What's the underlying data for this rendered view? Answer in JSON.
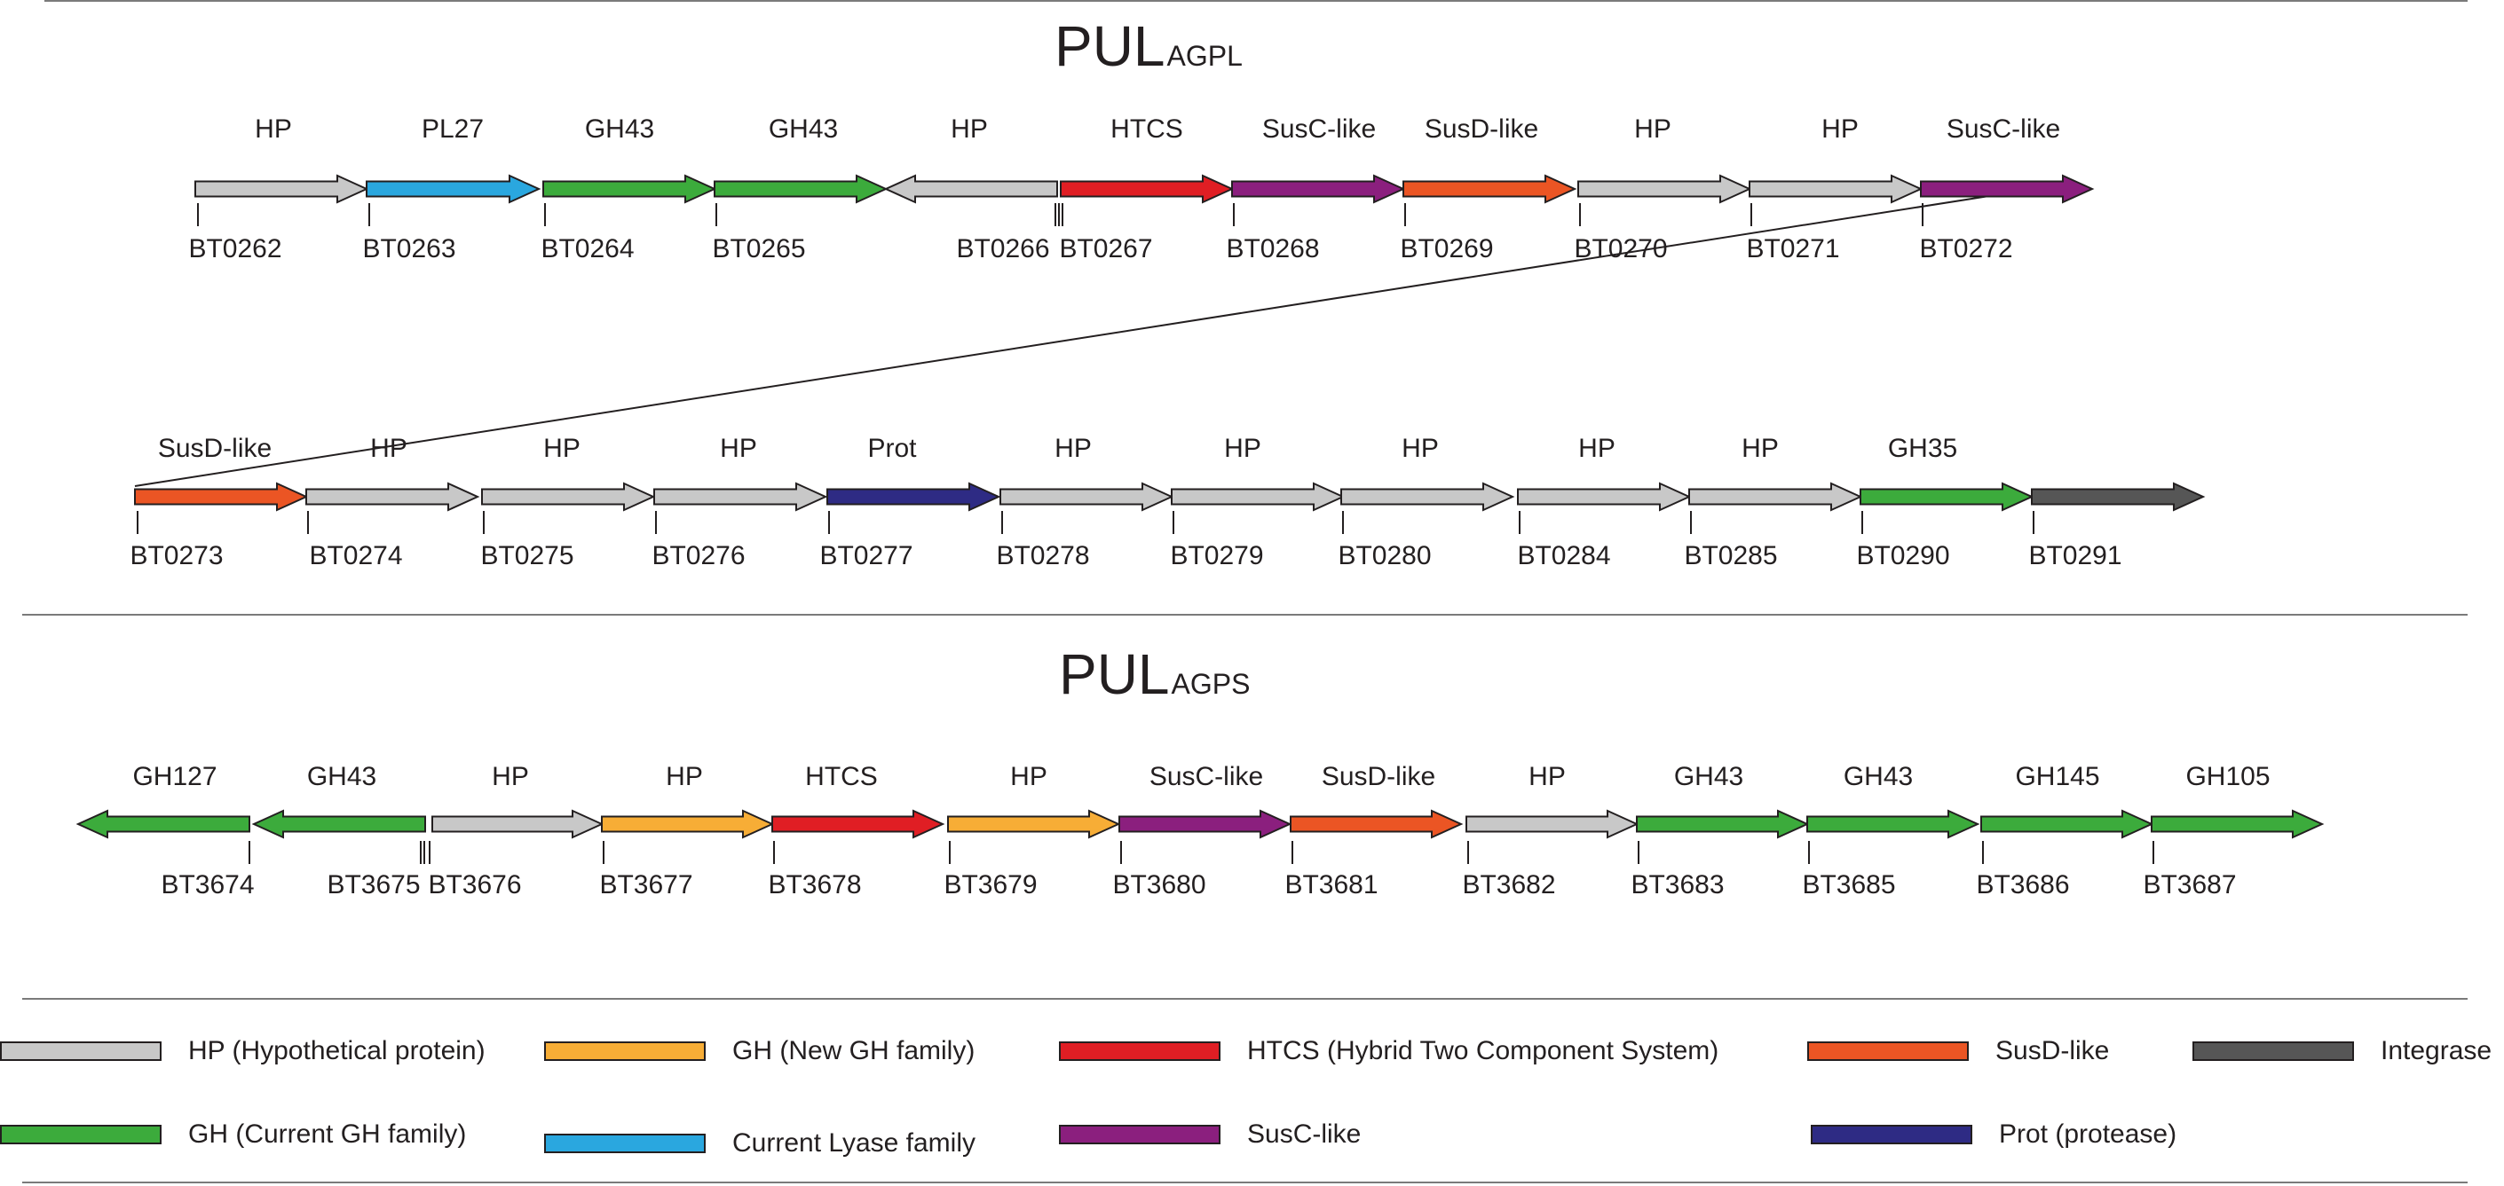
{
  "colors": {
    "hp": "#c8c8c8",
    "lyase": "#2aa7df",
    "gh_current": "#3cab3c",
    "htcs": "#e01e24",
    "susc": "#8b1f7e",
    "susd": "#eb5524",
    "prot": "#2e2b84",
    "integrase": "#565656",
    "gh_new": "#f7ad36",
    "stroke": "#231f20"
  },
  "pul_agpl": {
    "title_main": "PUL",
    "title_sub": "AGPL",
    "row1": [
      {
        "label": "HP",
        "locus": "BT0262",
        "type": "hp",
        "dir": "right"
      },
      {
        "label": "PL27",
        "locus": "BT0263",
        "type": "lyase",
        "dir": "right"
      },
      {
        "label": "GH43",
        "locus": "BT0264",
        "type": "gh_current",
        "dir": "right"
      },
      {
        "label": "GH43",
        "locus": "BT0265",
        "type": "gh_current",
        "dir": "right"
      },
      {
        "label": "HP",
        "locus": "BT0266",
        "type": "hp",
        "dir": "left"
      },
      {
        "label": "HTCS",
        "locus": "BT0267",
        "type": "htcs",
        "dir": "right"
      },
      {
        "label": "SusC-like",
        "locus": "BT0268",
        "type": "susc",
        "dir": "right"
      },
      {
        "label": "SusD-like",
        "locus": "BT0269",
        "type": "susd",
        "dir": "right"
      },
      {
        "label": "HP",
        "locus": "BT0270",
        "type": "hp",
        "dir": "right"
      },
      {
        "label": "HP",
        "locus": "BT0271",
        "type": "hp",
        "dir": "right"
      },
      {
        "label": "SusC-like",
        "locus": "BT0272",
        "type": "susc",
        "dir": "right"
      }
    ],
    "row2": [
      {
        "label": "SusD-like",
        "locus": "BT0273",
        "type": "susd",
        "dir": "right"
      },
      {
        "label": "HP",
        "locus": "BT0274",
        "type": "hp",
        "dir": "right"
      },
      {
        "label": "HP",
        "locus": "BT0275",
        "type": "hp",
        "dir": "right"
      },
      {
        "label": "HP",
        "locus": "BT0276",
        "type": "hp",
        "dir": "right"
      },
      {
        "label": "Prot",
        "locus": "BT0277",
        "type": "prot",
        "dir": "right"
      },
      {
        "label": "HP",
        "locus": "BT0278",
        "type": "hp",
        "dir": "right"
      },
      {
        "label": "HP",
        "locus": "BT0279",
        "type": "hp",
        "dir": "right"
      },
      {
        "label": "HP",
        "locus": "BT0280",
        "type": "hp",
        "dir": "right"
      },
      {
        "label": "HP",
        "locus": "BT0284",
        "type": "hp",
        "dir": "right"
      },
      {
        "label": "HP",
        "locus": "BT0285",
        "type": "hp",
        "dir": "right"
      },
      {
        "label": "GH35",
        "locus": "BT0290",
        "type": "gh_current",
        "dir": "right"
      },
      {
        "label": "",
        "locus": "BT0291",
        "type": "integrase",
        "dir": "right"
      }
    ]
  },
  "pul_agps": {
    "title_main": "PUL",
    "title_sub": "AGPS",
    "row": [
      {
        "label": "GH127",
        "locus": "BT3674",
        "type": "gh_current",
        "dir": "left"
      },
      {
        "label": "GH43",
        "locus": "BT3675",
        "type": "gh_current",
        "dir": "left"
      },
      {
        "label": "HP",
        "locus": "BT3676",
        "type": "hp",
        "dir": "right"
      },
      {
        "label": "HP",
        "locus": "BT3677",
        "type": "gh_new",
        "dir": "right"
      },
      {
        "label": "HTCS",
        "locus": "BT3678",
        "type": "htcs",
        "dir": "right"
      },
      {
        "label": "HP",
        "locus": "BT3679",
        "type": "gh_new",
        "dir": "right"
      },
      {
        "label": "SusC-like",
        "locus": "BT3680",
        "type": "susc",
        "dir": "right"
      },
      {
        "label": "SusD-like",
        "locus": "BT3681",
        "type": "susd",
        "dir": "right"
      },
      {
        "label": "HP",
        "locus": "BT3682",
        "type": "hp",
        "dir": "right"
      },
      {
        "label": "GH43",
        "locus": "BT3683",
        "type": "gh_current",
        "dir": "right"
      },
      {
        "label": "GH43",
        "locus": "BT3685",
        "type": "gh_current",
        "dir": "right"
      },
      {
        "label": "GH145",
        "locus": "BT3686",
        "type": "gh_current",
        "dir": "right"
      },
      {
        "label": "GH105",
        "locus": "BT3687",
        "type": "gh_current",
        "dir": "right"
      }
    ]
  },
  "legend": [
    {
      "key": "hp",
      "text": "HP (Hypothetical protein)"
    },
    {
      "key": "gh_new",
      "text": "GH (New GH family)"
    },
    {
      "key": "htcs",
      "text": "HTCS (Hybrid Two Component System)"
    },
    {
      "key": "susd",
      "text": "SusD-like"
    },
    {
      "key": "integrase",
      "text": "Integrase"
    },
    {
      "key": "gh_current",
      "text": "GH (Current GH family)"
    },
    {
      "key": "lyase",
      "text": "Current Lyase family"
    },
    {
      "key": "susc",
      "text": "SusC-like"
    },
    {
      "key": "prot",
      "text": "Prot (protease)"
    }
  ]
}
